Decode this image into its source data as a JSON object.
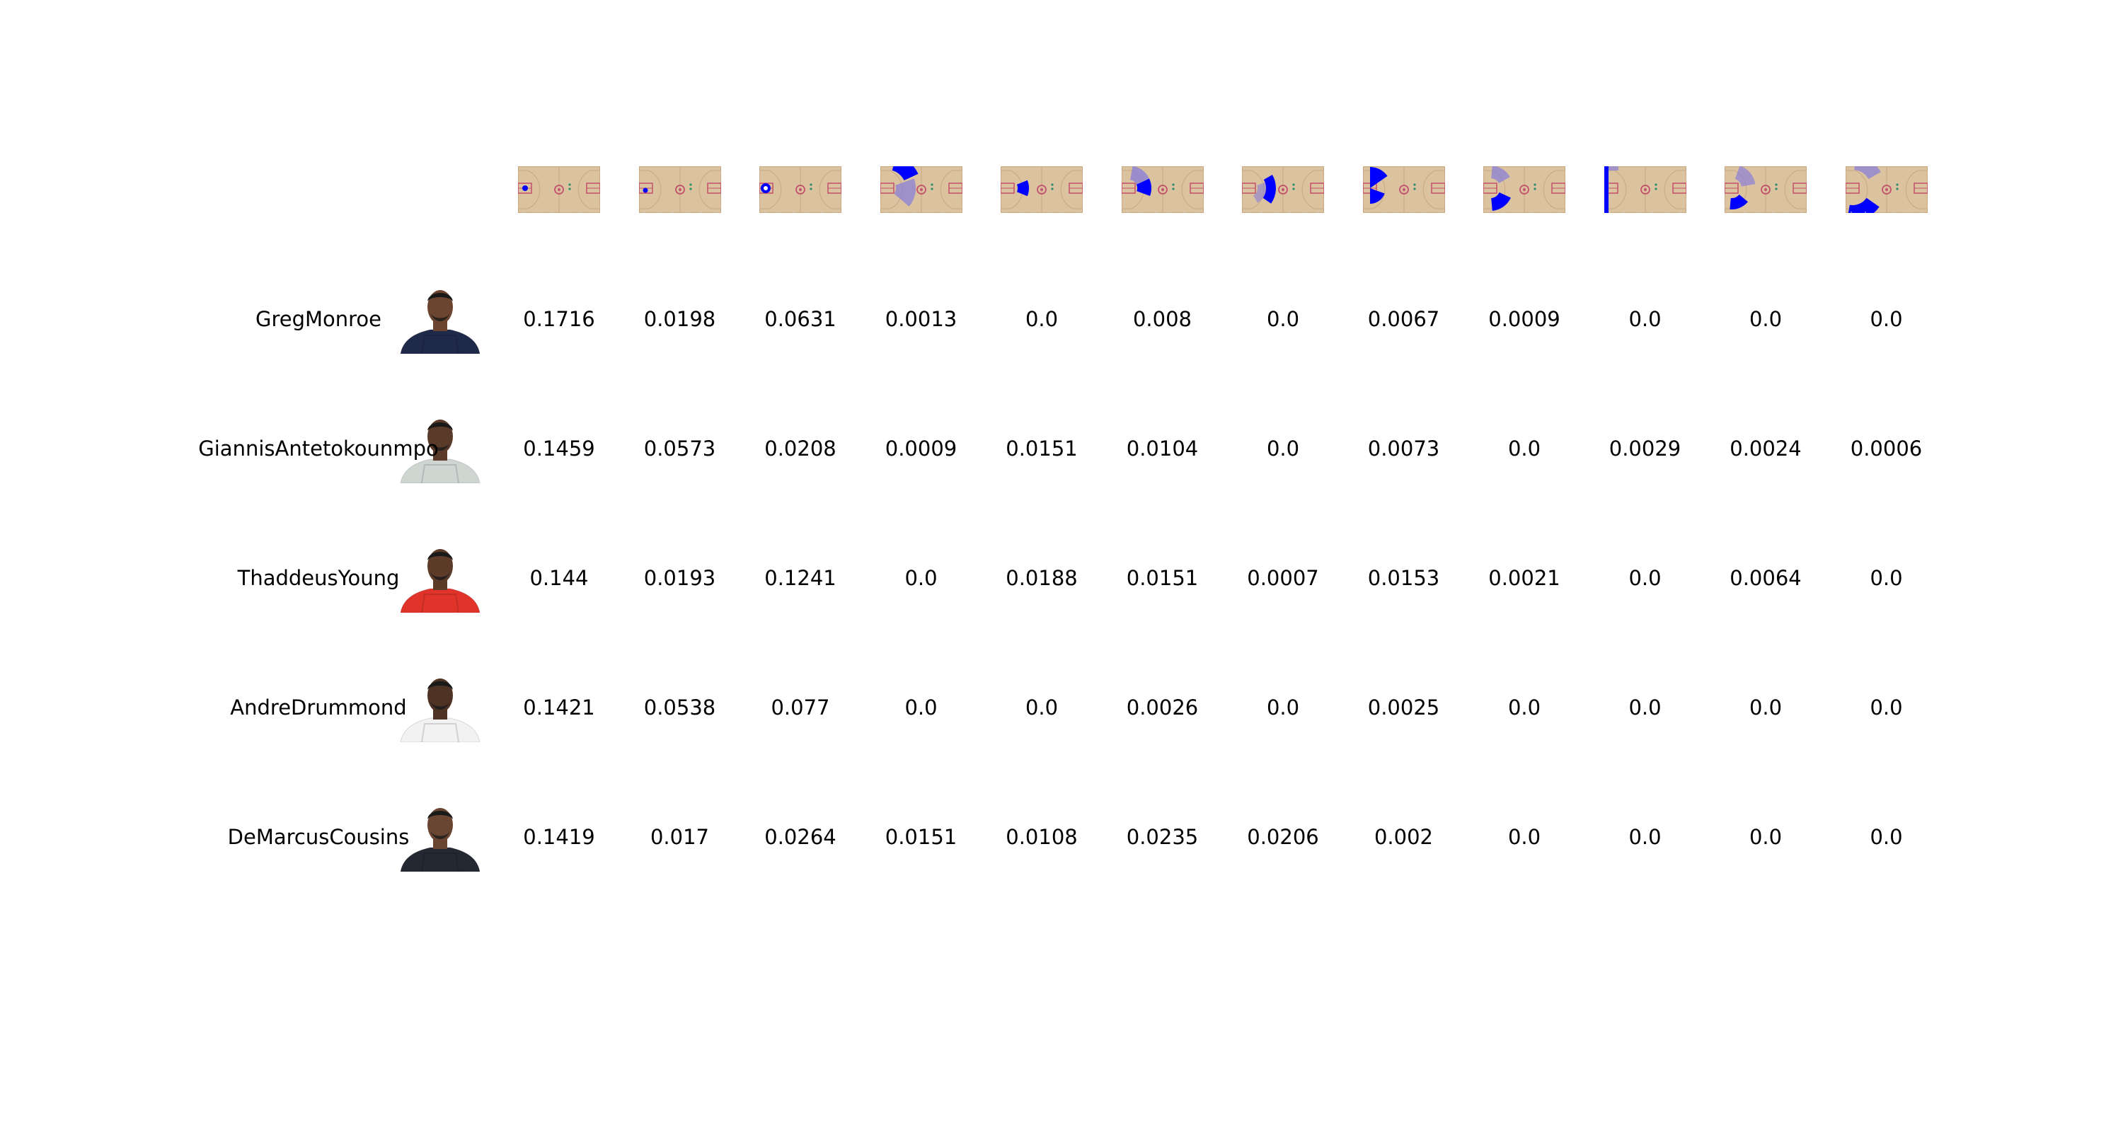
{
  "chart_data": {
    "type": "table",
    "columns": [
      {
        "zone": "restricted-area"
      },
      {
        "zone": "low-post-left"
      },
      {
        "zone": "paint"
      },
      {
        "zone": "corner-three-wide"
      },
      {
        "zone": "free-throw-line"
      },
      {
        "zone": "left-wing-mid"
      },
      {
        "zone": "top-key-mid"
      },
      {
        "zone": "left-baseline-mid"
      },
      {
        "zone": "elbow-split"
      },
      {
        "zone": "left-corner-three"
      },
      {
        "zone": "right-wing-mid"
      },
      {
        "zone": "above-break-three"
      }
    ],
    "rows": [
      {
        "player": "GregMonroe",
        "jersey_color": "#1f2a4a",
        "skin": "#6b4530",
        "values": [
          "0.1716",
          "0.0198",
          "0.0631",
          "0.0013",
          "0.0",
          "0.008",
          "0.0",
          "0.0067",
          "0.0009",
          "0.0",
          "0.0",
          "0.0"
        ]
      },
      {
        "player": "GiannisAntetokounmpo",
        "jersey_color": "#cfd6d2",
        "skin": "#5a3a28",
        "values": [
          "0.1459",
          "0.0573",
          "0.0208",
          "0.0009",
          "0.0151",
          "0.0104",
          "0.0",
          "0.0073",
          "0.0",
          "0.0029",
          "0.0024",
          "0.0006"
        ]
      },
      {
        "player": "ThaddeusYoung",
        "jersey_color": "#e0342b",
        "skin": "#5c3b29",
        "values": [
          "0.144",
          "0.0193",
          "0.1241",
          "0.0",
          "0.0188",
          "0.0151",
          "0.0007",
          "0.0153",
          "0.0021",
          "0.0",
          "0.0064",
          "0.0"
        ]
      },
      {
        "player": "AndreDrummond",
        "jersey_color": "#f2f2f2",
        "skin": "#4e3325",
        "values": [
          "0.1421",
          "0.0538",
          "0.077",
          "0.0",
          "0.0",
          "0.0026",
          "0.0",
          "0.0025",
          "0.0",
          "0.0",
          "0.0",
          "0.0"
        ]
      },
      {
        "player": "DeMarcusCousins",
        "jersey_color": "#232833",
        "skin": "#6a4632",
        "values": [
          "0.1419",
          "0.017",
          "0.0264",
          "0.0151",
          "0.0108",
          "0.0235",
          "0.0206",
          "0.002",
          "0.0",
          "0.0",
          "0.0",
          "0.0"
        ]
      }
    ]
  },
  "colors": {
    "court_wood": "#dcc3a0",
    "court_line": "#c9a882",
    "paint_red": "#c3506a",
    "zone_blue": "#0000ff",
    "zone_blue_light": "#8a7fd6",
    "text": "#000000"
  },
  "icons": {
    "court": "basketball-half-court-icon",
    "avatar": "player-headshot-icon"
  }
}
